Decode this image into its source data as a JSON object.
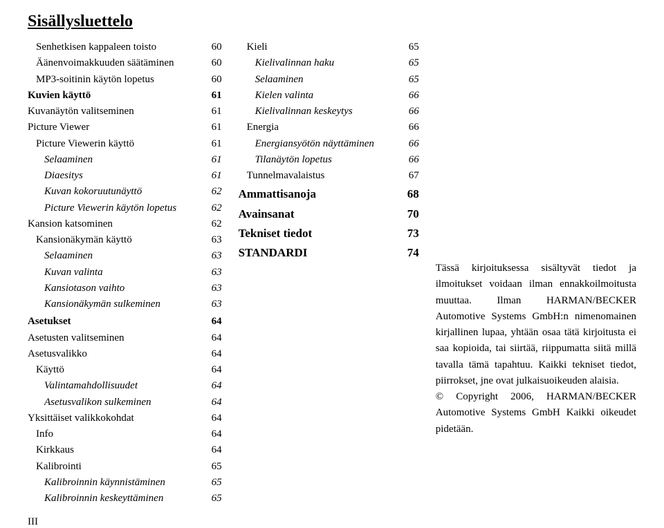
{
  "title": "Sisällysluettelo",
  "footer": "III",
  "left": [
    {
      "label": "Senhetkisen kappaleen toisto",
      "pg": "60",
      "cls": "ind1"
    },
    {
      "label": "Äänenvoimakkuuden säätäminen",
      "pg": "60",
      "cls": "ind1"
    },
    {
      "label": "MP3-soitinin käytön lopetus",
      "pg": "60",
      "cls": "ind1"
    },
    {
      "label": "Kuvien käyttö",
      "pg": "61",
      "cls": "bold"
    },
    {
      "label": "Kuvanäytön valitseminen",
      "pg": "61",
      "cls": ""
    },
    {
      "label": "Picture Viewer",
      "pg": "61",
      "cls": ""
    },
    {
      "label": "Picture Viewerin käyttö",
      "pg": "61",
      "cls": "ind1"
    },
    {
      "label": "Selaaminen",
      "pg": "61",
      "cls": "ind2 italic"
    },
    {
      "label": "Diaesitys",
      "pg": "61",
      "cls": "ind2 italic"
    },
    {
      "label": "Kuvan kokoruutunäyttö",
      "pg": "62",
      "cls": "ind2 italic"
    },
    {
      "label": "Picture Viewerin käytön lopetus",
      "pg": "62",
      "cls": "ind2 italic"
    },
    {
      "label": "Kansion katsominen",
      "pg": "62",
      "cls": ""
    },
    {
      "label": "Kansionäkymän käyttö",
      "pg": "63",
      "cls": "ind1"
    },
    {
      "label": "Selaaminen",
      "pg": "63",
      "cls": "ind2 italic"
    },
    {
      "label": "Kuvan valinta",
      "pg": "63",
      "cls": "ind2 italic"
    },
    {
      "label": "Kansiotason vaihto",
      "pg": "63",
      "cls": "ind2 italic"
    },
    {
      "label": "Kansionäkymän sulkeminen",
      "pg": "63",
      "cls": "ind2 italic"
    },
    {
      "label": "Asetukset",
      "pg": "64",
      "cls": "bold sec"
    },
    {
      "label": "Asetusten valitseminen",
      "pg": "64",
      "cls": ""
    },
    {
      "label": "Asetusvalikko",
      "pg": "64",
      "cls": ""
    },
    {
      "label": "Käyttö",
      "pg": "64",
      "cls": "ind1"
    },
    {
      "label": "Valintamahdollisuudet",
      "pg": "64",
      "cls": "ind2 italic"
    },
    {
      "label": "Asetusvalikon sulkeminen",
      "pg": "64",
      "cls": "ind2 italic"
    },
    {
      "label": "Yksittäiset valikkokohdat",
      "pg": "64",
      "cls": ""
    },
    {
      "label": "Info",
      "pg": "64",
      "cls": "ind1"
    },
    {
      "label": "Kirkkaus",
      "pg": "64",
      "cls": "ind1"
    },
    {
      "label": "Kalibrointi",
      "pg": "65",
      "cls": "ind1"
    },
    {
      "label": "Kalibroinnin käynnistäminen",
      "pg": "65",
      "cls": "ind2 italic"
    },
    {
      "label": "Kalibroinnin keskeyttäminen",
      "pg": "65",
      "cls": "ind2 italic"
    }
  ],
  "mid": [
    {
      "label": "Kieli",
      "pg": "65",
      "cls": "ind1"
    },
    {
      "label": "Kielivalinnan haku",
      "pg": "65",
      "cls": "ind2 italic"
    },
    {
      "label": "Selaaminen",
      "pg": "65",
      "cls": "ind2 italic"
    },
    {
      "label": "Kielen valinta",
      "pg": "66",
      "cls": "ind2 italic"
    },
    {
      "label": "Kielivalinnan keskeytys",
      "pg": "66",
      "cls": "ind2 italic"
    },
    {
      "label": "Energia",
      "pg": "66",
      "cls": "ind1"
    },
    {
      "label": "Energiansyötön näyttäminen",
      "pg": "66",
      "cls": "ind2 italic"
    },
    {
      "label": "Tilanäytön lopetus",
      "pg": "66",
      "cls": "ind2 italic"
    },
    {
      "label": "Tunnelmavalaistus",
      "pg": "67",
      "cls": "ind1"
    },
    {
      "label": "Ammattisanoja",
      "pg": "68",
      "cls": "bigsec sec"
    },
    {
      "label": "Avainsanat",
      "pg": "70",
      "cls": "bigsec sec"
    },
    {
      "label": "Tekniset tiedot",
      "pg": "73",
      "cls": "bigsec sec"
    },
    {
      "label": "STANDARDI",
      "pg": "74",
      "cls": "bigsec sec"
    }
  ],
  "right": {
    "p1": "Tässä kirjoituksessa sisältyvät tiedot ja ilmoitukset voidaan ilman ennakkoilmoitusta muuttaa. Ilman HARMAN/BECKER Automotive Systems GmbH:n nimenomainen kirjallinen lupaa, yhtään osaa tätä kirjoitusta ei saa kopioida, tai siirtää, riippumatta siitä millä tavalla tämä tapahtuu. Kaikki tekniset tiedot, piirrokset, jne ovat julkaisuoikeuden alaisia.",
    "p2": "© Copyright 2006, HARMAN/BECKER Automotive Systems GmbH Kaikki oikeudet pidetään."
  }
}
